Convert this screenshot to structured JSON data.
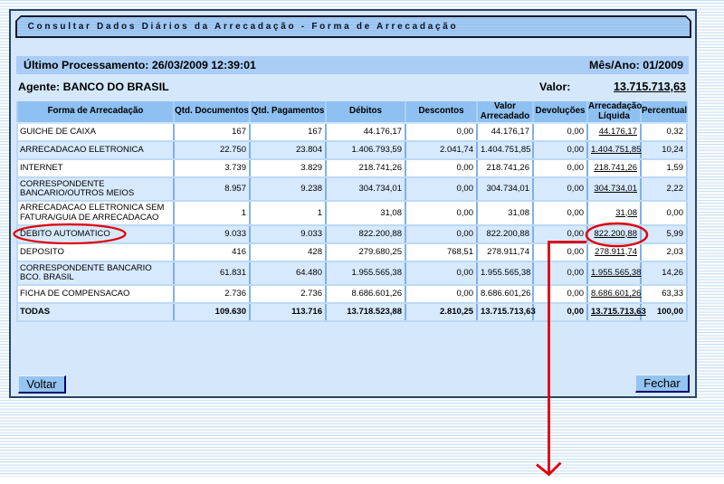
{
  "title": "Consultar Dados Diários da Arrecadação - Forma de Arrecadação",
  "info_bar": {
    "last_processing": "Último Processamento: 26/03/2009 12:39:01",
    "month_year": "Mês/Ano: 01/2009"
  },
  "agente": {
    "label": "Agente: BANCO DO BRASIL",
    "valor_label": "Valor:",
    "valor_value": "13.715.713,63"
  },
  "table": {
    "headers": [
      {
        "lines": [
          "Forma de Arrecadação"
        ]
      },
      {
        "lines": [
          "Qtd. Documentos"
        ]
      },
      {
        "lines": [
          "Qtd. Pagamentos"
        ]
      },
      {
        "lines": [
          "Débitos"
        ]
      },
      {
        "lines": [
          "Descontos"
        ]
      },
      {
        "lines": [
          "Valor",
          "Arrecadado"
        ]
      },
      {
        "lines": [
          "Devoluções"
        ]
      },
      {
        "lines": [
          "Arrecadação",
          "Líquida"
        ]
      },
      {
        "lines": [
          "Percentual"
        ]
      }
    ],
    "rows": [
      {
        "cells": [
          "GUICHE DE CAIXA",
          "167",
          "167",
          "44.176,17",
          "0,00",
          "44.176,17",
          "0,00",
          "44.176,17",
          "0,32"
        ]
      },
      {
        "cells": [
          "ARRECADACAO ELETRONICA",
          "22.750",
          "23.804",
          "1.406.793,59",
          "2.041,74",
          "1.404.751,85",
          "0,00",
          "1.404.751,85",
          "10,24"
        ]
      },
      {
        "cells": [
          "INTERNET",
          "3.739",
          "3.829",
          "218.741,26",
          "0,00",
          "218.741,26",
          "0,00",
          "218.741,26",
          "1,59"
        ]
      },
      {
        "cells": [
          "CORRESPONDENTE BANCARIO/OUTROS MEIOS",
          "8.957",
          "9.238",
          "304.734,01",
          "0,00",
          "304.734,01",
          "0,00",
          "304.734,01",
          "2,22"
        ]
      },
      {
        "cells": [
          "ARRECADACAO ELETRONICA SEM FATURA/GUIA DE ARRECADACAO",
          "1",
          "1",
          "31,08",
          "0,00",
          "31,08",
          "0,00",
          "31,08",
          "0,00"
        ]
      },
      {
        "cells": [
          "DEBITO AUTOMATICO",
          "9.033",
          "9.033",
          "822.200,88",
          "0,00",
          "822.200,88",
          "0,00",
          "822.200,88",
          "5,99"
        ],
        "annotated": true
      },
      {
        "cells": [
          "DEPOSITO",
          "416",
          "428",
          "279.680,25",
          "768,51",
          "278.911,74",
          "0,00",
          "278.911,74",
          "2,03"
        ]
      },
      {
        "cells": [
          "CORRESPONDENTE BANCARIO BCO. BRASIL",
          "61.831",
          "64.480",
          "1.955.565,38",
          "0,00",
          "1.955.565,38",
          "0,00",
          "1.955.565,38",
          "14,26"
        ]
      },
      {
        "cells": [
          "FICHA DE COMPENSACAO",
          "2.736",
          "2.736",
          "8.686.601,26",
          "0,00",
          "8.686.601,26",
          "0,00",
          "8.686.601,26",
          "63,33"
        ]
      },
      {
        "cells": [
          "TODAS",
          "109.630",
          "113.716",
          "13.718.523,88",
          "2.810,25",
          "13.715.713,63",
          "0,00",
          "13.715.713,63",
          "100,00"
        ],
        "total": true
      }
    ]
  },
  "buttons": {
    "back": "Voltar",
    "close": "Fechar"
  },
  "annotation_color": "#e00008"
}
